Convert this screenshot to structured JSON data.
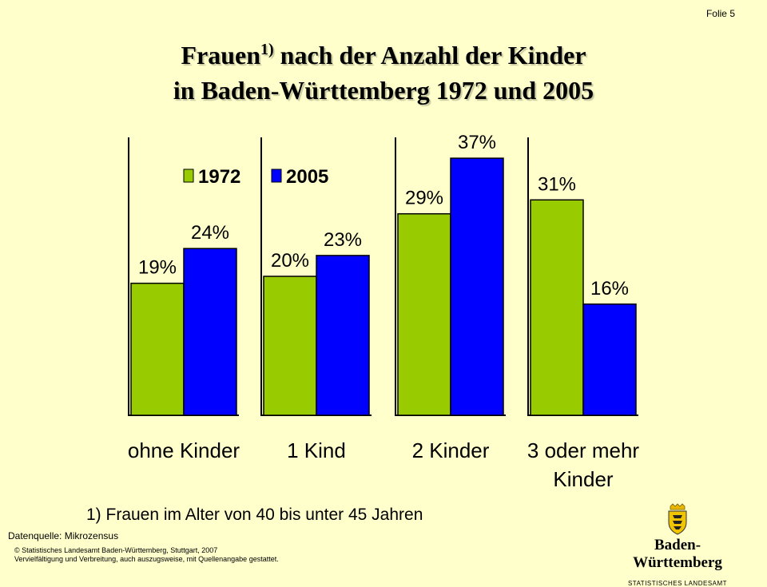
{
  "slide_label": "Folie 5",
  "title_line1": "Frauen",
  "title_sup": "1)",
  "title_line1_rest": " nach der Anzahl der Kinder",
  "title_line2": "in Baden-Württemberg 1972 und 2005",
  "footnote": "1) Frauen im Alter von 40 bis unter 45 Jahren",
  "source": "Datenquelle: Mikrozensus",
  "copyright_line1": "© Statistisches Landesamt Baden-Württemberg, Stuttgart, 2007",
  "copyright_line2": "Vervielfältigung und Verbreitung, auch auszugsweise, mit Quellenangabe gestattet.",
  "brand_name": "Baden-Württemberg",
  "brand_sub": "STATISTISCHES LANDESAMT",
  "chart_data": {
    "type": "bar",
    "categories": [
      [
        "ohne Kinder"
      ],
      [
        "1 Kind"
      ],
      [
        "2 Kinder"
      ],
      [
        "3 oder mehr",
        "Kinder"
      ]
    ],
    "series": [
      {
        "name": "1972",
        "color": "#99cc00",
        "values": [
          19,
          20,
          29,
          31
        ],
        "labels": [
          "19%",
          "20%",
          "29%",
          "31%"
        ]
      },
      {
        "name": "2005",
        "color": "#0000ff",
        "values": [
          24,
          23,
          37,
          16
        ],
        "labels": [
          "24%",
          "23%",
          "37%",
          "16%"
        ]
      }
    ],
    "ylim": [
      0,
      40
    ],
    "legend_position": "top-left",
    "grid": false
  }
}
